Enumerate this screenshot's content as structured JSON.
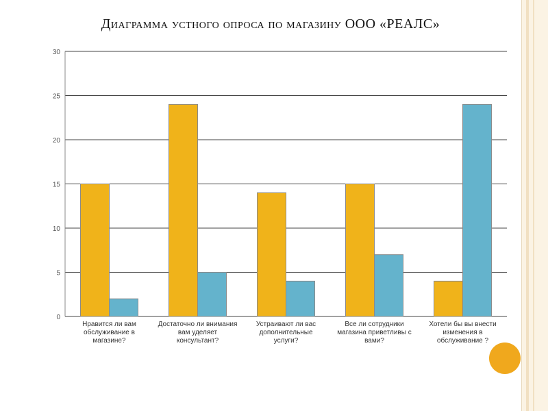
{
  "title": "Диаграмма устного опроса по магазину ООО «РЕАЛС»",
  "colors": {
    "series1": "#f0b31a",
    "series2": "#64b3cc",
    "accent_circle": "#f0a81d",
    "grid": "#444444"
  },
  "chart_data": {
    "type": "bar",
    "title": "Диаграмма устного опроса по магазину ООО «РЕАЛС»",
    "xlabel": "",
    "ylabel": "",
    "ylim": [
      0,
      30
    ],
    "yticks": [
      0,
      5,
      10,
      15,
      20,
      25,
      30
    ],
    "grid": true,
    "legend": "none",
    "categories": [
      [
        "Нравится ли вам",
        "обслуживание в",
        "магазине?"
      ],
      [
        "Достаточно ли внимания",
        "вам уделяет",
        "консультант?"
      ],
      [
        "Устраивают ли вас",
        "дополнительные",
        "услуги?"
      ],
      [
        "Все ли сотрудники",
        "магазина приветливы с",
        "вами?"
      ],
      [
        "Хотели бы вы внести",
        "изменения в",
        "обслуживание ?"
      ]
    ],
    "series": [
      {
        "values": [
          15,
          24,
          14,
          15,
          4
        ]
      },
      {
        "values": [
          2,
          5,
          4,
          7,
          24
        ]
      }
    ]
  }
}
